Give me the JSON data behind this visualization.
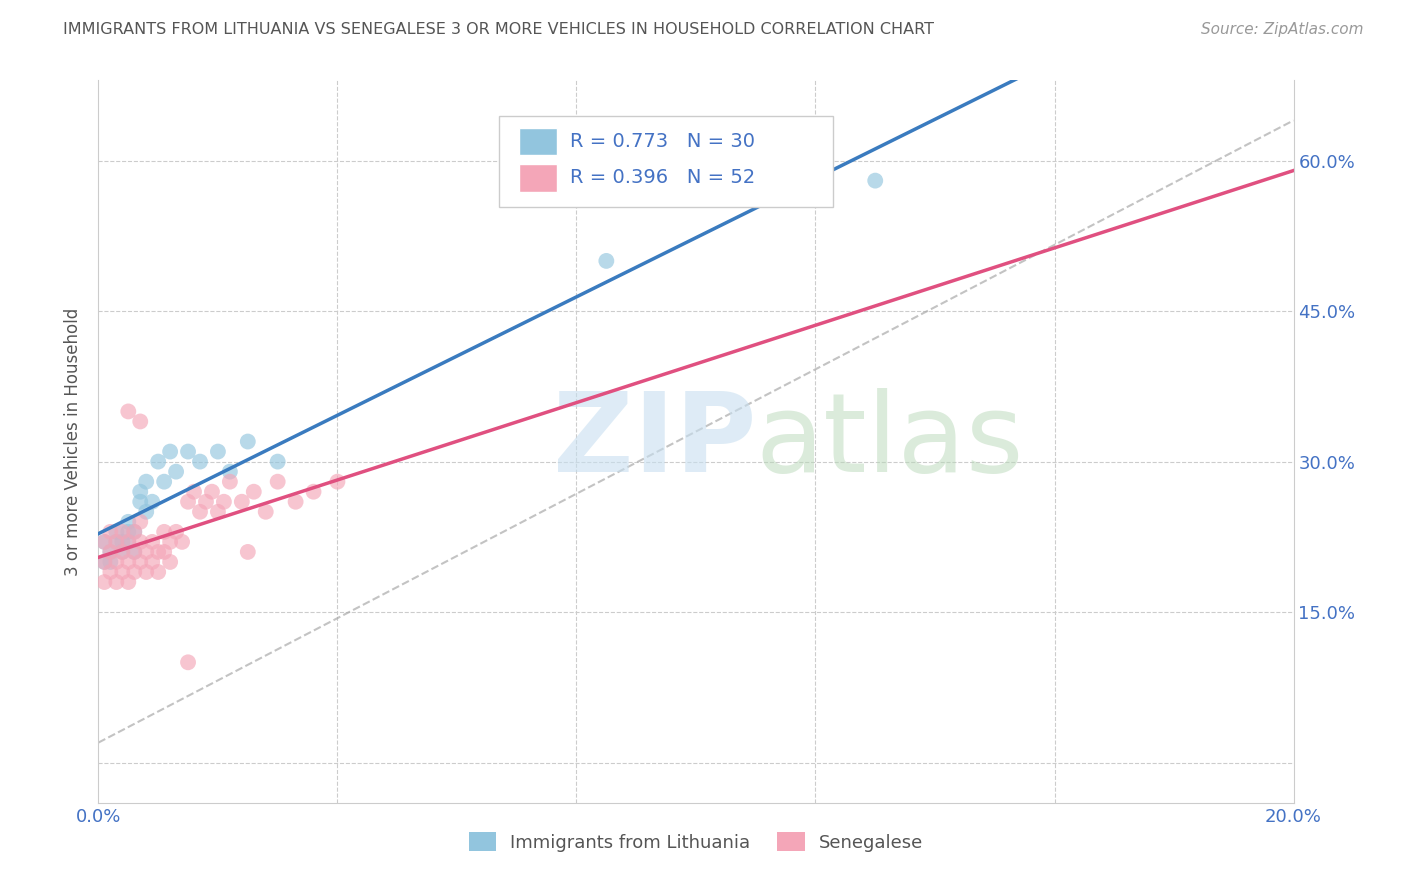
{
  "title": "IMMIGRANTS FROM LITHUANIA VS SENEGALESE 3 OR MORE VEHICLES IN HOUSEHOLD CORRELATION CHART",
  "source": "Source: ZipAtlas.com",
  "ylabel": "3 or more Vehicles in Household",
  "xlim": [
    0.0,
    0.2
  ],
  "ylim": [
    -0.04,
    0.68
  ],
  "xticks": [
    0.0,
    0.04,
    0.08,
    0.12,
    0.16,
    0.2
  ],
  "xticklabels": [
    "0.0%",
    "",
    "",
    "",
    "",
    "20.0%"
  ],
  "yticks": [
    0.0,
    0.15,
    0.3,
    0.45,
    0.6
  ],
  "yticklabels_right": [
    "",
    "15.0%",
    "30.0%",
    "45.0%",
    "60.0%"
  ],
  "legend_labels": [
    "Immigrants from Lithuania",
    "Senegalese"
  ],
  "blue_color": "#92c5de",
  "pink_color": "#f4a6b8",
  "blue_line_color": "#3a7bbf",
  "pink_line_color": "#e05080",
  "blue_scatter_x": [
    0.001,
    0.001,
    0.002,
    0.002,
    0.003,
    0.003,
    0.004,
    0.004,
    0.005,
    0.005,
    0.005,
    0.006,
    0.006,
    0.007,
    0.007,
    0.008,
    0.008,
    0.009,
    0.01,
    0.011,
    0.012,
    0.013,
    0.015,
    0.017,
    0.02,
    0.022,
    0.025,
    0.03,
    0.085,
    0.13
  ],
  "blue_scatter_y": [
    0.2,
    0.22,
    0.2,
    0.21,
    0.22,
    0.23,
    0.21,
    0.22,
    0.23,
    0.22,
    0.24,
    0.21,
    0.23,
    0.26,
    0.27,
    0.25,
    0.28,
    0.26,
    0.3,
    0.28,
    0.31,
    0.29,
    0.31,
    0.3,
    0.31,
    0.29,
    0.32,
    0.3,
    0.5,
    0.58
  ],
  "pink_scatter_x": [
    0.001,
    0.001,
    0.001,
    0.002,
    0.002,
    0.002,
    0.003,
    0.003,
    0.003,
    0.004,
    0.004,
    0.004,
    0.005,
    0.005,
    0.005,
    0.006,
    0.006,
    0.006,
    0.007,
    0.007,
    0.007,
    0.008,
    0.008,
    0.009,
    0.009,
    0.01,
    0.01,
    0.011,
    0.011,
    0.012,
    0.012,
    0.013,
    0.014,
    0.015,
    0.016,
    0.017,
    0.018,
    0.019,
    0.02,
    0.021,
    0.022,
    0.024,
    0.026,
    0.028,
    0.03,
    0.033,
    0.036,
    0.04,
    0.005,
    0.007,
    0.015,
    0.025
  ],
  "pink_scatter_y": [
    0.18,
    0.2,
    0.22,
    0.19,
    0.21,
    0.23,
    0.18,
    0.2,
    0.22,
    0.19,
    0.21,
    0.23,
    0.18,
    0.2,
    0.22,
    0.19,
    0.21,
    0.23,
    0.2,
    0.22,
    0.24,
    0.19,
    0.21,
    0.2,
    0.22,
    0.19,
    0.21,
    0.21,
    0.23,
    0.2,
    0.22,
    0.23,
    0.22,
    0.26,
    0.27,
    0.25,
    0.26,
    0.27,
    0.25,
    0.26,
    0.28,
    0.26,
    0.27,
    0.25,
    0.28,
    0.26,
    0.27,
    0.28,
    0.35,
    0.34,
    0.1,
    0.21
  ]
}
